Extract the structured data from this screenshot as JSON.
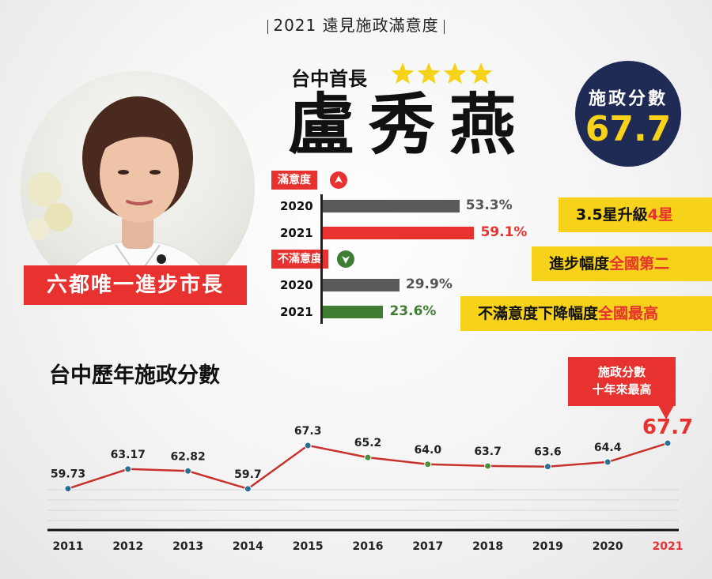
{
  "header": {
    "title": "2021 遠見施政滿意度"
  },
  "subtitle": "台中首長",
  "rating_stars": 4,
  "mayor_name": "盧秀燕",
  "score_badge": {
    "label": "施政分數",
    "value": "67.7"
  },
  "nameplate": "六都唯一進步市長",
  "satisfaction": {
    "label": "滿意度",
    "rows": [
      {
        "year": "2020",
        "value": 53.3,
        "text": "53.3%"
      },
      {
        "year": "2021",
        "value": 59.1,
        "text": "59.1%"
      }
    ]
  },
  "dissatisfaction": {
    "label": "不滿意度",
    "rows": [
      {
        "year": "2020",
        "value": 29.9,
        "text": "29.9%"
      },
      {
        "year": "2021",
        "value": 23.6,
        "text": "23.6%"
      }
    ]
  },
  "callouts": [
    {
      "prefix": "3.5星升級",
      "highlight": "4星"
    },
    {
      "prefix": "進步幅度",
      "highlight": "全國第二"
    },
    {
      "prefix": "不滿意度下降幅度",
      "highlight": "全國最高"
    }
  ],
  "record_badge": {
    "line1": "施政分數",
    "line2": "十年來最高"
  },
  "colors": {
    "red": "#e8322f",
    "yellow": "#f6d21b",
    "navy": "#1f2a55",
    "gray_bar": "#5a5a5a",
    "green_bar": "#3f7d35",
    "blue_point": "#2b6f94",
    "green_point": "#4e8f3a"
  },
  "chart_data": {
    "type": "line",
    "title": "台中歷年施政分數",
    "x": [
      "2011",
      "2012",
      "2013",
      "2014",
      "2015",
      "2016",
      "2017",
      "2018",
      "2019",
      "2020",
      "2021"
    ],
    "values": [
      59.73,
      63.17,
      62.82,
      59.7,
      67.3,
      65.2,
      64.0,
      63.7,
      63.6,
      64.4,
      67.7
    ],
    "labels": [
      "59.73",
      "63.17",
      "62.82",
      "59.7",
      "67.3",
      "65.2",
      "64.0",
      "63.7",
      "63.6",
      "64.4",
      "67.7"
    ],
    "highlight_index": 10,
    "ylim": [
      54,
      72
    ],
    "grid": true
  }
}
